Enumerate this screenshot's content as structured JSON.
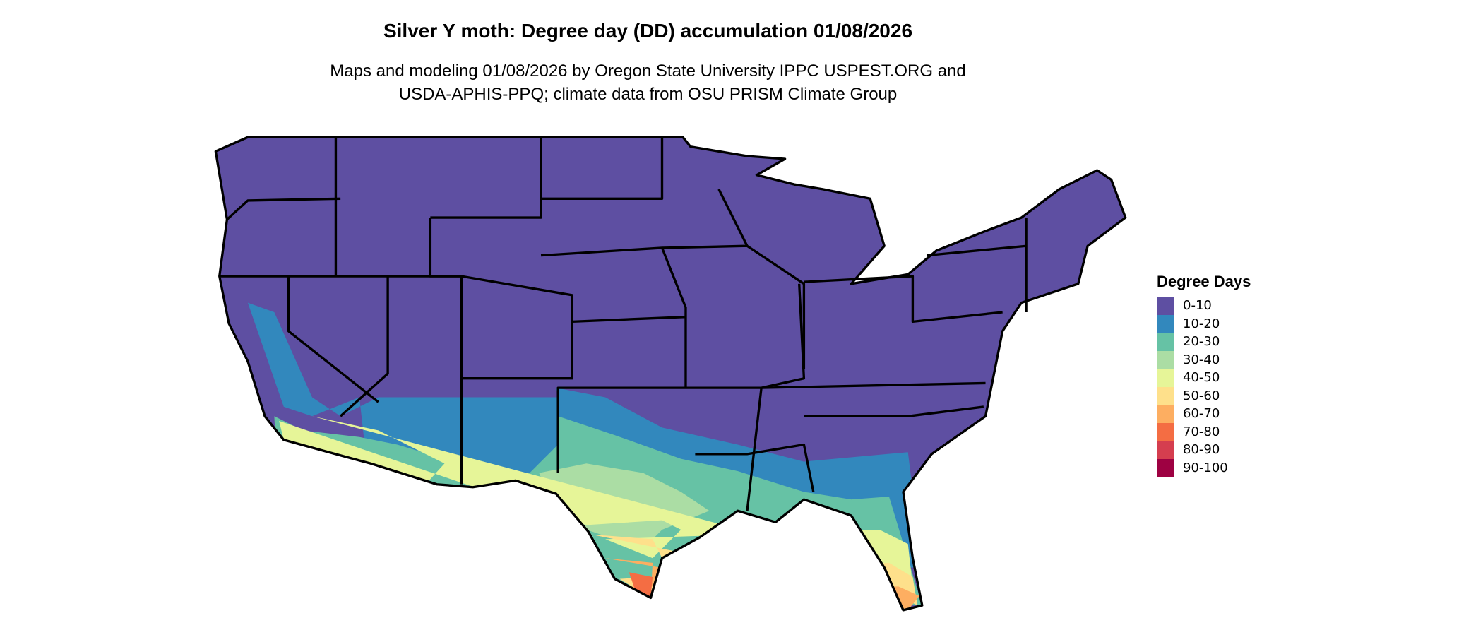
{
  "title": "Silver Y moth: Degree day (DD) accumulation 01/08/2026",
  "subtitle_lines": [
    "Maps and modeling 01/08/2026 by Oregon State University IPPC USPEST.ORG and",
    "USDA-APHIS-PPQ; climate data from OSU PRISM Climate Group"
  ],
  "legend": {
    "title": "Degree Days",
    "items": [
      {
        "label": "0-10",
        "color": "#5E4FA2"
      },
      {
        "label": "10-20",
        "color": "#3288BD"
      },
      {
        "label": "20-30",
        "color": "#66C2A5"
      },
      {
        "label": "30-40",
        "color": "#ABDDA4"
      },
      {
        "label": "40-50",
        "color": "#E6F598"
      },
      {
        "label": "50-60",
        "color": "#FEE08B"
      },
      {
        "label": "60-70",
        "color": "#FDAE61"
      },
      {
        "label": "70-80",
        "color": "#F46D43"
      },
      {
        "label": "80-90",
        "color": "#D53E4F"
      },
      {
        "label": "90-100",
        "color": "#9E0142"
      }
    ]
  },
  "map": {
    "region": "Contiguous United States",
    "borders": "state"
  }
}
